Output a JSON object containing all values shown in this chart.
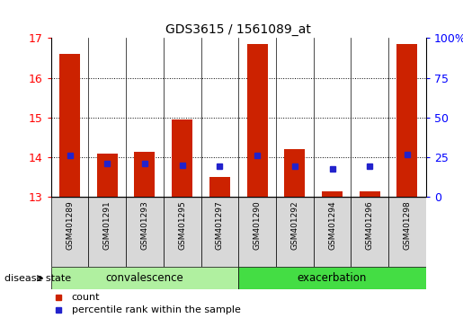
{
  "title": "GDS3615 / 1561089_at",
  "samples": [
    "GSM401289",
    "GSM401291",
    "GSM401293",
    "GSM401295",
    "GSM401297",
    "GSM401290",
    "GSM401292",
    "GSM401294",
    "GSM401296",
    "GSM401298"
  ],
  "red_top": [
    16.6,
    14.1,
    14.15,
    14.95,
    13.5,
    16.85,
    14.2,
    13.15,
    13.15,
    16.85
  ],
  "red_bottom": [
    13.0,
    13.0,
    13.0,
    13.0,
    13.0,
    13.0,
    13.0,
    13.0,
    13.0,
    13.0
  ],
  "blue_y": [
    14.05,
    13.85,
    13.85,
    13.8,
    13.77,
    14.05,
    13.78,
    13.72,
    13.78,
    14.07
  ],
  "ylim": [
    13.0,
    17.0
  ],
  "yticks_left": [
    13,
    14,
    15,
    16,
    17
  ],
  "groups": [
    {
      "label": "convalescence",
      "start": 0,
      "end": 5,
      "color": "#b0f0a0"
    },
    {
      "label": "exacerbation",
      "start": 5,
      "end": 10,
      "color": "#44dd44"
    }
  ],
  "bar_color": "#cc2200",
  "blue_color": "#2222cc",
  "legend_items": [
    {
      "label": "count",
      "color": "#cc2200"
    },
    {
      "label": "percentile rank within the sample",
      "color": "#2222cc"
    }
  ],
  "disease_state_label": "disease state"
}
